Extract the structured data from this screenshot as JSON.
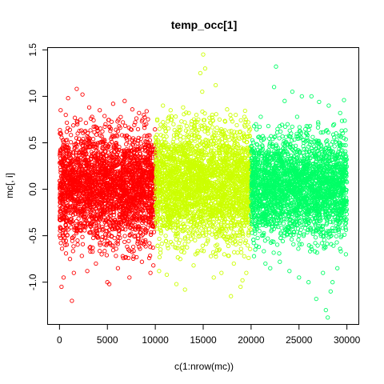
{
  "chart_data": {
    "type": "scatter",
    "title": "temp_occ[1]",
    "xlabel": "c(1:nrow(mc))",
    "ylabel": "mc[, i]",
    "xlim": [
      -1200,
      31200
    ],
    "ylim": [
      -1.45,
      1.52
    ],
    "xticks": [
      0,
      5000,
      10000,
      15000,
      20000,
      25000,
      30000
    ],
    "xtick_labels": [
      "0",
      "5000",
      "10000",
      "15000",
      "20000",
      "25000",
      "30000"
    ],
    "yticks": [
      -1.0,
      -0.5,
      0.0,
      0.5,
      1.0,
      1.5
    ],
    "ytick_labels": [
      "-1.0",
      "-0.5",
      "0.0",
      "0.5",
      "1.0",
      "1.5"
    ],
    "grid": false,
    "marker": "open-circle",
    "series": [
      {
        "color": "#FF0000",
        "x_range": [
          1,
          10000
        ],
        "y_core": [
          -0.5,
          0.55
        ],
        "points": [
          [
            210,
            -1.05
          ],
          [
            430,
            -0.95
          ],
          [
            1300,
            -1.2
          ],
          [
            900,
            0.98
          ],
          [
            1800,
            1.08
          ],
          [
            2400,
            1.02
          ],
          [
            3100,
            0.88
          ],
          [
            4200,
            0.85
          ],
          [
            5600,
            0.92
          ],
          [
            6800,
            0.95
          ],
          [
            7600,
            0.86
          ],
          [
            8300,
            0.82
          ],
          [
            9100,
            0.84
          ],
          [
            1500,
            -0.9
          ],
          [
            2900,
            -0.88
          ],
          [
            3800,
            -0.8
          ],
          [
            5200,
            -1.02
          ],
          [
            6100,
            -0.85
          ],
          [
            7300,
            -0.95
          ],
          [
            8600,
            -0.78
          ],
          [
            9500,
            -0.9
          ],
          [
            650,
            0.8
          ],
          [
            2200,
            0.75
          ],
          [
            4800,
            0.7
          ],
          [
            7900,
            0.72
          ],
          [
            1100,
            -0.75
          ],
          [
            4400,
            -0.7
          ],
          [
            6600,
            -0.72
          ],
          [
            9800,
            -0.82
          ],
          [
            3400,
            0.78
          ],
          [
            120,
            0.85
          ],
          [
            600,
            -0.6
          ],
          [
            5000,
            -1.0
          ],
          [
            8800,
            0.8
          ]
        ]
      },
      {
        "color": "#CCFF00",
        "x_range": [
          10001,
          20000
        ],
        "y_core": [
          -0.5,
          0.6
        ],
        "points": [
          [
            15000,
            1.45
          ],
          [
            14700,
            1.25
          ],
          [
            14900,
            1.05
          ],
          [
            15200,
            1.3
          ],
          [
            16300,
            1.12
          ],
          [
            13500,
            0.82
          ],
          [
            10800,
            0.9
          ],
          [
            11600,
            0.85
          ],
          [
            12900,
            0.88
          ],
          [
            17500,
            0.86
          ],
          [
            18400,
            0.8
          ],
          [
            19300,
            0.78
          ],
          [
            10400,
            -0.88
          ],
          [
            11200,
            -0.92
          ],
          [
            12200,
            -1.02
          ],
          [
            13100,
            -1.08
          ],
          [
            16100,
            -0.95
          ],
          [
            16900,
            -0.9
          ],
          [
            18900,
            -1.05
          ],
          [
            19100,
            -0.98
          ],
          [
            19500,
            -0.9
          ],
          [
            17900,
            -1.15
          ],
          [
            12600,
            -0.75
          ],
          [
            14200,
            -0.7
          ],
          [
            15800,
            -0.72
          ],
          [
            18200,
            -0.8
          ],
          [
            11900,
            0.7
          ],
          [
            16700,
            0.75
          ],
          [
            19700,
            0.72
          ],
          [
            10200,
            0.74
          ],
          [
            14000,
            -0.82
          ],
          [
            17200,
            -0.7
          ]
        ]
      },
      {
        "color": "#00FF66",
        "x_range": [
          20001,
          30000
        ],
        "y_core": [
          -0.45,
          0.5
        ],
        "points": [
          [
            22600,
            1.32
          ],
          [
            22400,
            1.1
          ],
          [
            24300,
            1.05
          ],
          [
            23500,
            0.95
          ],
          [
            25300,
            1.0
          ],
          [
            26300,
            1.0
          ],
          [
            27100,
            0.94
          ],
          [
            28100,
            0.9
          ],
          [
            29700,
            0.96
          ],
          [
            21000,
            0.78
          ],
          [
            20500,
            0.7
          ],
          [
            24000,
            -0.88
          ],
          [
            25000,
            -0.95
          ],
          [
            21500,
            -0.8
          ],
          [
            22000,
            -0.85
          ],
          [
            26000,
            -1.0
          ],
          [
            27500,
            -0.9
          ],
          [
            29000,
            -0.85
          ],
          [
            28000,
            -1.38
          ],
          [
            27800,
            -1.3
          ],
          [
            28300,
            -1.1
          ],
          [
            28500,
            -1.0
          ],
          [
            26800,
            -1.18
          ],
          [
            23000,
            -0.78
          ],
          [
            20300,
            -0.72
          ],
          [
            24800,
            0.78
          ],
          [
            29300,
            0.82
          ],
          [
            20800,
            -0.62
          ],
          [
            27000,
            0.72
          ],
          [
            23800,
            0.7
          ],
          [
            21800,
            0.68
          ],
          [
            29900,
            -0.7
          ]
        ]
      }
    ]
  }
}
